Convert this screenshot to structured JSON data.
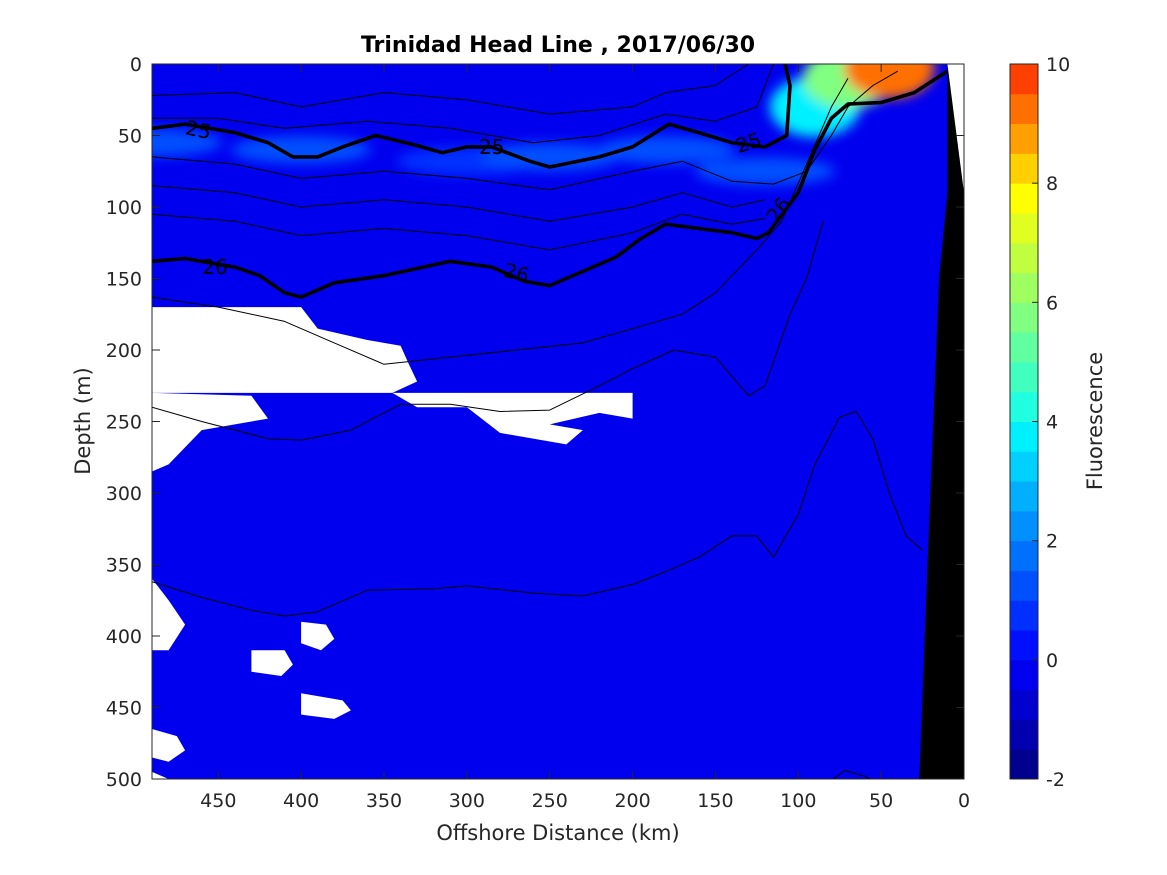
{
  "chart_data": {
    "type": "contour",
    "title": "Trinidad Head Line , 2017/06/30",
    "xlabel": "Offshore Distance (km)",
    "ylabel": "Depth (m)",
    "colorbar_label": "Fluorescence",
    "xlim": [
      490,
      0
    ],
    "ylim": [
      0,
      500
    ],
    "x_ticks": [
      450,
      400,
      350,
      300,
      250,
      200,
      150,
      100,
      50,
      0
    ],
    "y_ticks": [
      0,
      50,
      100,
      150,
      200,
      250,
      300,
      350,
      400,
      450,
      500
    ],
    "colorbar": {
      "range": [
        -2,
        10
      ],
      "ticks": [
        -2,
        0,
        2,
        4,
        6,
        8,
        10
      ],
      "levels": [
        -2,
        -1.5,
        -1,
        -0.5,
        0,
        0.5,
        1,
        1.5,
        2,
        2.5,
        3,
        3.5,
        4,
        4.5,
        5,
        5.5,
        6,
        6.5,
        7,
        7.5,
        8,
        8.5,
        9,
        9.5,
        10
      ],
      "colors": [
        "#00008f",
        "#0000af",
        "#0000cf",
        "#0000ef",
        "#0010ff",
        "#0030ff",
        "#0050ff",
        "#0070ff",
        "#0090ff",
        "#00b0ff",
        "#00d0ff",
        "#00f0ff",
        "#20ffdf",
        "#40ffbf",
        "#60ff9f",
        "#80ff80",
        "#a0ff60",
        "#c0ff40",
        "#e0ff20",
        "#ffff00",
        "#ffd000",
        "#ffa000",
        "#ff7000",
        "#ff4000",
        "#ff1000",
        "#df0000",
        "#af0000",
        "#800000"
      ]
    },
    "background_fluorescence": -0.25,
    "chlorophyll_layer": [
      {
        "x": 490,
        "depth": 55,
        "value": 1.0
      },
      {
        "x": 400,
        "depth": 60,
        "value": 1.2
      },
      {
        "x": 300,
        "depth": 68,
        "value": 0.8
      },
      {
        "x": 250,
        "depth": 65,
        "value": 1.3
      },
      {
        "x": 180,
        "depth": 60,
        "value": 1.0
      },
      {
        "x": 120,
        "depth": 75,
        "value": 1.2
      },
      {
        "x": 90,
        "depth": 30,
        "value": 3.5
      },
      {
        "x": 70,
        "depth": 10,
        "value": 5.5
      },
      {
        "x": 45,
        "depth": 3,
        "value": 9.0
      }
    ],
    "density_contours": [
      {
        "level": "25",
        "bold": true,
        "points": [
          [
            490,
            45
          ],
          [
            470,
            42
          ],
          [
            440,
            48
          ],
          [
            420,
            55
          ],
          [
            405,
            65
          ],
          [
            390,
            65
          ],
          [
            375,
            58
          ],
          [
            355,
            50
          ],
          [
            330,
            57
          ],
          [
            315,
            62
          ],
          [
            300,
            58
          ],
          [
            285,
            58
          ],
          [
            262,
            68
          ],
          [
            250,
            72
          ],
          [
            220,
            65
          ],
          [
            200,
            58
          ],
          [
            178,
            42
          ],
          [
            160,
            48
          ],
          [
            140,
            55
          ],
          [
            120,
            58
          ],
          [
            107,
            50
          ],
          [
            105,
            15
          ],
          [
            108,
            0
          ]
        ]
      },
      {
        "level": "26",
        "bold": true,
        "points": [
          [
            490,
            138
          ],
          [
            470,
            136
          ],
          [
            440,
            142
          ],
          [
            425,
            148
          ],
          [
            410,
            160
          ],
          [
            400,
            163
          ],
          [
            380,
            153
          ],
          [
            350,
            148
          ],
          [
            330,
            143
          ],
          [
            310,
            138
          ],
          [
            285,
            142
          ],
          [
            265,
            152
          ],
          [
            250,
            155
          ],
          [
            230,
            145
          ],
          [
            210,
            135
          ],
          [
            195,
            122
          ],
          [
            180,
            112
          ],
          [
            160,
            115
          ],
          [
            140,
            118
          ],
          [
            125,
            122
          ],
          [
            118,
            118
          ],
          [
            100,
            90
          ],
          [
            90,
            60
          ],
          [
            80,
            38
          ],
          [
            70,
            28
          ],
          [
            50,
            27
          ],
          [
            30,
            20
          ],
          [
            10,
            5
          ]
        ]
      },
      {
        "level": "",
        "bold": false,
        "points": [
          [
            490,
            22
          ],
          [
            440,
            20
          ],
          [
            400,
            30
          ],
          [
            350,
            20
          ],
          [
            300,
            25
          ],
          [
            250,
            35
          ],
          [
            200,
            30
          ],
          [
            180,
            20
          ],
          [
            150,
            15
          ],
          [
            130,
            0
          ]
        ]
      },
      {
        "level": "",
        "bold": false,
        "points": [
          [
            490,
            38
          ],
          [
            450,
            38
          ],
          [
            410,
            45
          ],
          [
            360,
            40
          ],
          [
            310,
            45
          ],
          [
            260,
            55
          ],
          [
            220,
            50
          ],
          [
            180,
            35
          ],
          [
            150,
            40
          ],
          [
            125,
            30
          ],
          [
            115,
            0
          ]
        ]
      },
      {
        "level": "",
        "bold": false,
        "points": [
          [
            490,
            65
          ],
          [
            440,
            70
          ],
          [
            400,
            80
          ],
          [
            350,
            75
          ],
          [
            300,
            80
          ],
          [
            250,
            88
          ],
          [
            200,
            75
          ],
          [
            170,
            68
          ],
          [
            140,
            82
          ],
          [
            115,
            84
          ],
          [
            95,
            75
          ],
          [
            80,
            50
          ],
          [
            70,
            30
          ],
          [
            55,
            15
          ],
          [
            40,
            5
          ]
        ]
      },
      {
        "level": "",
        "bold": false,
        "points": [
          [
            490,
            85
          ],
          [
            440,
            90
          ],
          [
            400,
            100
          ],
          [
            350,
            95
          ],
          [
            300,
            100
          ],
          [
            250,
            110
          ],
          [
            200,
            100
          ],
          [
            170,
            90
          ],
          [
            140,
            100
          ],
          [
            120,
            95
          ]
        ]
      },
      {
        "level": "",
        "bold": false,
        "points": [
          [
            490,
            105
          ],
          [
            440,
            110
          ],
          [
            400,
            120
          ],
          [
            350,
            115
          ],
          [
            300,
            120
          ],
          [
            250,
            130
          ],
          [
            200,
            118
          ],
          [
            170,
            105
          ],
          [
            140,
            112
          ],
          [
            120,
            108
          ]
        ]
      },
      {
        "level": "",
        "bold": false,
        "points": [
          [
            490,
            163
          ],
          [
            450,
            170
          ],
          [
            410,
            180
          ],
          [
            380,
            195
          ],
          [
            350,
            210
          ],
          [
            310,
            205
          ],
          [
            270,
            200
          ],
          [
            230,
            195
          ],
          [
            200,
            185
          ],
          [
            170,
            175
          ],
          [
            150,
            160
          ],
          [
            125,
            130
          ],
          [
            110,
            110
          ],
          [
            95,
            70
          ],
          [
            80,
            30
          ],
          [
            70,
            10
          ]
        ]
      },
      {
        "level": "",
        "bold": false,
        "points": [
          [
            490,
            240
          ],
          [
            460,
            250
          ],
          [
            420,
            262
          ],
          [
            400,
            263
          ],
          [
            370,
            256
          ],
          [
            340,
            238
          ],
          [
            310,
            238
          ],
          [
            280,
            243
          ],
          [
            250,
            242
          ],
          [
            220,
            225
          ],
          [
            200,
            213
          ],
          [
            175,
            200
          ],
          [
            150,
            205
          ],
          [
            130,
            232
          ],
          [
            120,
            225
          ],
          [
            105,
            175
          ],
          [
            95,
            150
          ],
          [
            85,
            110
          ]
        ]
      },
      {
        "level": "",
        "bold": false,
        "points": [
          [
            490,
            362
          ],
          [
            460,
            373
          ],
          [
            430,
            382
          ],
          [
            410,
            386
          ],
          [
            390,
            383
          ],
          [
            360,
            368
          ],
          [
            320,
            367
          ],
          [
            300,
            365
          ],
          [
            260,
            370
          ],
          [
            230,
            372
          ],
          [
            200,
            364
          ],
          [
            180,
            355
          ],
          [
            160,
            345
          ],
          [
            140,
            330
          ],
          [
            125,
            330
          ],
          [
            115,
            345
          ],
          [
            100,
            315
          ],
          [
            90,
            280
          ],
          [
            75,
            247
          ],
          [
            65,
            243
          ],
          [
            55,
            262
          ],
          [
            45,
            300
          ],
          [
            35,
            330
          ],
          [
            25,
            340
          ]
        ]
      },
      {
        "level": "",
        "bold": false,
        "points": [
          [
            80,
            501
          ],
          [
            72,
            494
          ],
          [
            60,
            498
          ],
          [
            52,
            503
          ]
        ]
      }
    ],
    "missing_data_regions": [
      [
        [
          490,
          170
        ],
        [
          400,
          170
        ],
        [
          420,
          175
        ],
        [
          440,
          180
        ],
        [
          420,
          185
        ],
        [
          400,
          190
        ],
        [
          380,
          185
        ],
        [
          360,
          195
        ],
        [
          340,
          200
        ],
        [
          335,
          210
        ],
        [
          330,
          220
        ],
        [
          340,
          230
        ],
        [
          360,
          225
        ],
        [
          370,
          215
        ],
        [
          360,
          195
        ],
        [
          380,
          190
        ],
        [
          370,
          185
        ]
      ],
      [
        [
          490,
          170
        ],
        [
          440,
          170
        ],
        [
          460,
          182
        ],
        [
          420,
          180
        ],
        [
          400,
          186
        ],
        [
          390,
          180
        ],
        [
          380,
          200
        ],
        [
          350,
          195
        ],
        [
          340,
          210
        ],
        [
          355,
          220
        ],
        [
          350,
          230
        ],
        [
          330,
          220
        ],
        [
          320,
          230
        ],
        [
          345,
          240
        ],
        [
          330,
          250
        ],
        [
          300,
          240
        ],
        [
          280,
          260
        ],
        [
          260,
          250
        ],
        [
          240,
          265
        ],
        [
          220,
          270
        ],
        [
          200,
          260
        ],
        [
          230,
          250
        ],
        [
          240,
          235
        ],
        [
          200,
          230
        ],
        [
          150,
          240
        ],
        [
          100,
          228
        ],
        [
          60,
          230
        ],
        [
          0,
          230
        ],
        [
          0,
          265
        ],
        [
          0,
          280
        ]
      ]
    ],
    "white_patches": [
      [
        [
          490,
          170
        ],
        [
          460,
          170
        ],
        [
          450,
          180
        ],
        [
          430,
          175
        ],
        [
          400,
          175
        ],
        [
          390,
          185
        ],
        [
          380,
          185
        ],
        [
          380,
          195
        ],
        [
          360,
          195
        ],
        [
          340,
          200
        ],
        [
          330,
          215
        ],
        [
          345,
          230
        ],
        [
          330,
          240
        ],
        [
          300,
          240
        ],
        [
          290,
          230
        ],
        [
          250,
          230
        ],
        [
          230,
          230
        ],
        [
          220,
          245
        ],
        [
          200,
          255
        ],
        [
          180,
          255
        ],
        [
          170,
          265
        ],
        [
          160,
          270
        ],
        [
          160,
          280
        ],
        [
          150,
          275
        ],
        [
          130,
          268
        ],
        [
          110,
          262
        ],
        [
          90,
          260
        ],
        [
          70,
          258
        ],
        [
          50,
          255
        ],
        [
          30,
          250
        ],
        [
          10,
          245
        ],
        [
          0,
          242
        ]
      ],
      [
        [
          490,
          170
        ],
        [
          450,
          170
        ],
        [
          450,
          180
        ],
        [
          440,
          178
        ]
      ]
    ],
    "seafloor": [
      [
        10,
        0
      ],
      [
        0,
        0
      ],
      [
        0,
        500
      ],
      [
        27,
        500
      ],
      [
        22,
        350
      ],
      [
        15,
        150
      ],
      [
        10,
        90
      ]
    ]
  }
}
